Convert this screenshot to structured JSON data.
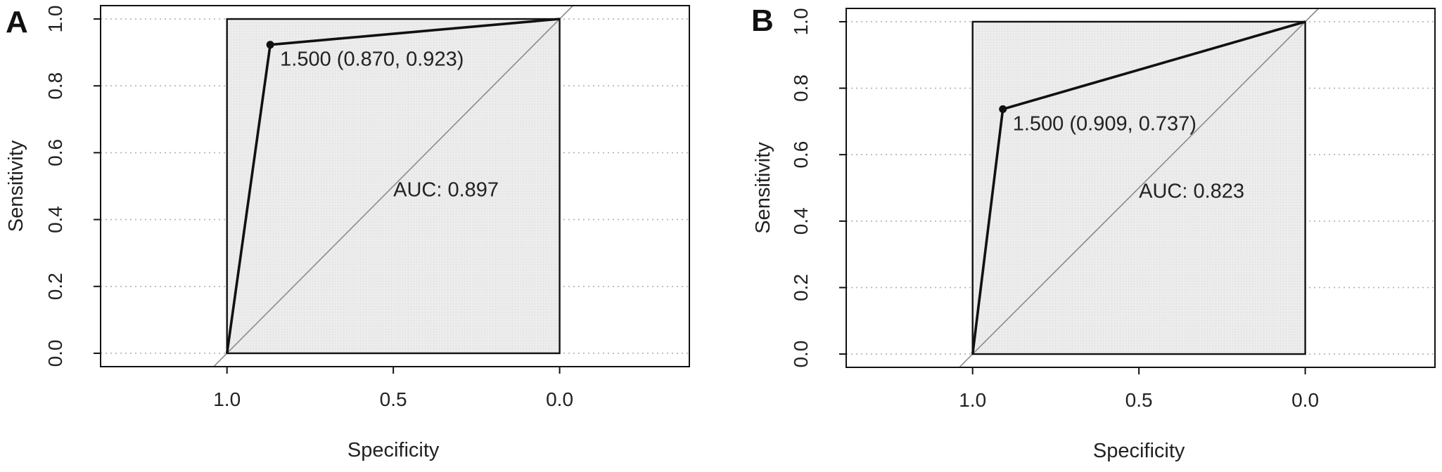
{
  "chart_data": [
    {
      "panel": "A",
      "type": "line",
      "xlabel": "Specificity",
      "ylabel": "Sensitivity",
      "xlim": [
        1.38,
        -0.39
      ],
      "ylim": [
        -0.04,
        1.04
      ],
      "x_ticks": [
        "1.0",
        "0.5",
        "0.0"
      ],
      "y_ticks": [
        "0.0",
        "0.2",
        "0.4",
        "0.6",
        "0.8",
        "1.0"
      ],
      "grid": "horizontal dotted",
      "roc": {
        "specificity": [
          1.0,
          0.87,
          0.0
        ],
        "sensitivity": [
          0.0,
          0.923,
          1.0
        ]
      },
      "threshold_point": {
        "specificity": 0.87,
        "sensitivity": 0.923,
        "label": "1.500 (0.870, 0.923)"
      },
      "auc_label": "AUC: 0.897",
      "auc_label_at": {
        "specificity": 0.5,
        "sensitivity": 0.47
      },
      "reference_line": "diagonal"
    },
    {
      "panel": "B",
      "type": "line",
      "xlabel": "Specificity",
      "ylabel": "Sensitivity",
      "xlim": [
        1.38,
        -0.39
      ],
      "ylim": [
        -0.04,
        1.04
      ],
      "x_ticks": [
        "1.0",
        "0.5",
        "0.0"
      ],
      "y_ticks": [
        "0.0",
        "0.2",
        "0.4",
        "0.6",
        "0.8",
        "1.0"
      ],
      "grid": "horizontal dotted",
      "roc": {
        "specificity": [
          1.0,
          0.909,
          0.0
        ],
        "sensitivity": [
          0.0,
          0.737,
          1.0
        ]
      },
      "threshold_point": {
        "specificity": 0.909,
        "sensitivity": 0.737,
        "label": "1.500 (0.909, 0.737)"
      },
      "auc_label": "AUC: 0.823",
      "auc_label_at": {
        "specificity": 0.5,
        "sensitivity": 0.47
      },
      "reference_line": "diagonal"
    }
  ]
}
